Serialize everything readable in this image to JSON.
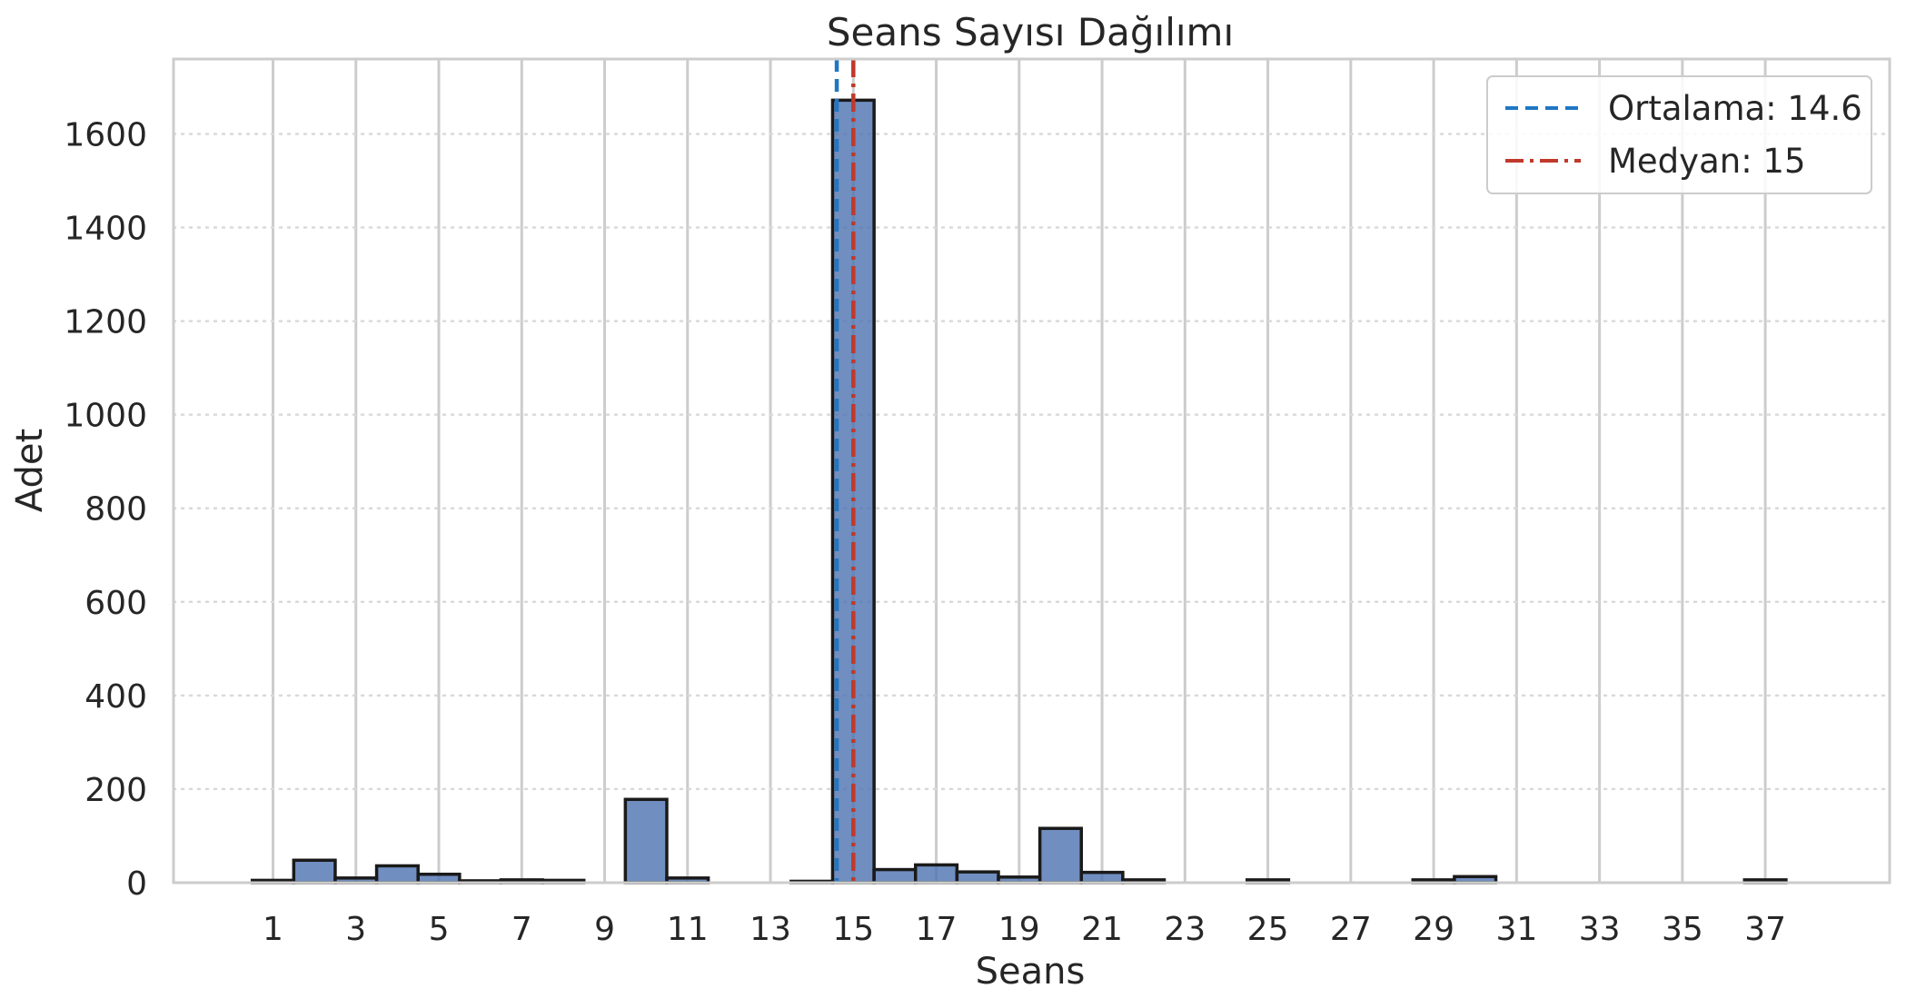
{
  "chart_data": {
    "type": "bar",
    "title": "Seans Sayısı Dağılımı",
    "xlabel": "Seans",
    "ylabel": "Adet",
    "xlim": [
      -1.4,
      40.0
    ],
    "ylim": [
      0,
      1760
    ],
    "x_ticks": [
      1,
      3,
      5,
      7,
      9,
      11,
      13,
      15,
      17,
      19,
      21,
      23,
      25,
      27,
      29,
      31,
      33,
      35,
      37
    ],
    "y_ticks": [
      0,
      200,
      400,
      600,
      800,
      1000,
      1200,
      1400,
      1600
    ],
    "grid": true,
    "legend_position": "top-right",
    "bar_color": "#4c72b0",
    "bins": [
      {
        "x": 1,
        "count": 5
      },
      {
        "x": 2,
        "count": 48
      },
      {
        "x": 3,
        "count": 10
      },
      {
        "x": 4,
        "count": 36
      },
      {
        "x": 5,
        "count": 18
      },
      {
        "x": 6,
        "count": 4
      },
      {
        "x": 7,
        "count": 6
      },
      {
        "x": 8,
        "count": 5
      },
      {
        "x": 10,
        "count": 178
      },
      {
        "x": 11,
        "count": 10
      },
      {
        "x": 14,
        "count": 3
      },
      {
        "x": 15,
        "count": 1672
      },
      {
        "x": 16,
        "count": 28
      },
      {
        "x": 17,
        "count": 38
      },
      {
        "x": 18,
        "count": 23
      },
      {
        "x": 19,
        "count": 12
      },
      {
        "x": 20,
        "count": 116
      },
      {
        "x": 21,
        "count": 22
      },
      {
        "x": 22,
        "count": 6
      },
      {
        "x": 25,
        "count": 6
      },
      {
        "x": 29,
        "count": 6
      },
      {
        "x": 30,
        "count": 13
      },
      {
        "x": 37,
        "count": 6
      }
    ],
    "reference_lines": [
      {
        "label": "Ortalama: 14.6",
        "value": 14.6,
        "color": "#1f77c4",
        "style": "dashed"
      },
      {
        "label": "Medyan: 15",
        "value": 15,
        "color": "#c0392b",
        "style": "dashdot"
      }
    ]
  }
}
